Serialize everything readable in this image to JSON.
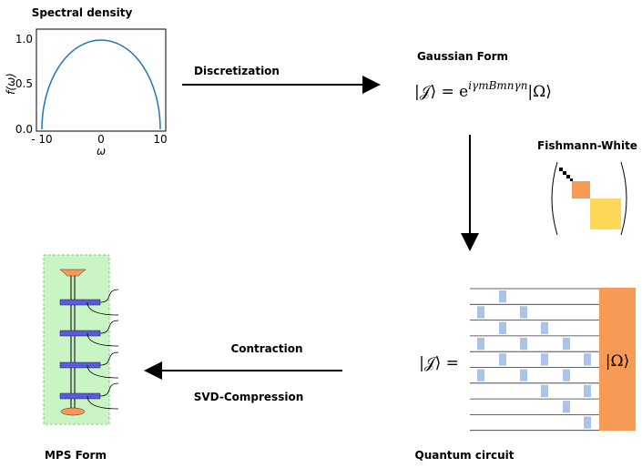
{
  "spectral": {
    "title": "Spectral density",
    "y_label": "f(ω)",
    "x_label": "ω",
    "x_ticks": [
      "- 10",
      "0",
      "10"
    ],
    "y_ticks": [
      "0.0",
      "0.5",
      "1.0"
    ]
  },
  "arrows": {
    "discretization": "Discretization",
    "contraction": "Contraction",
    "svd": "SVD-Compression"
  },
  "gaussian": {
    "title": "Gaussian Form",
    "lhs": "|𝒥⟩ = e",
    "exponent": "iγmBmnγn",
    "rhs": "|Ω⟩"
  },
  "fishmann": {
    "title": "Fishmann-White"
  },
  "circuit": {
    "title": "Quantum circuit",
    "lhs": "|𝒥⟩ =",
    "state": "|Ω⟩"
  },
  "mps": {
    "title": "MPS Form"
  }
}
